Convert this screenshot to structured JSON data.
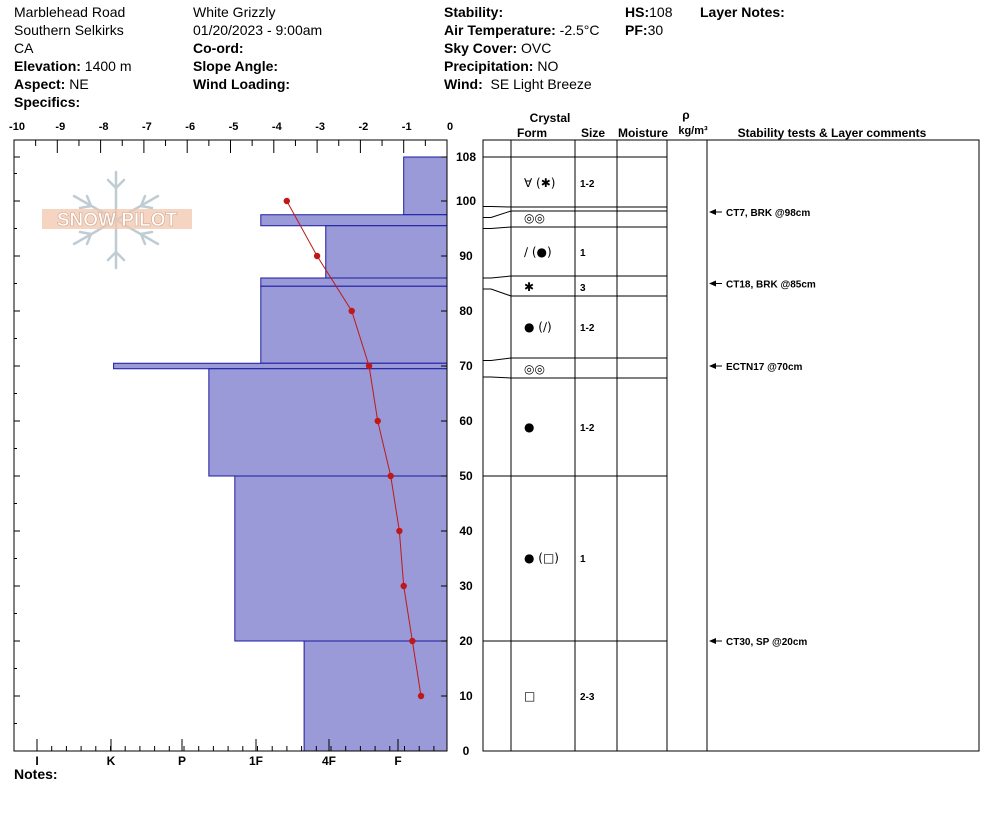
{
  "header": {
    "location": "Marblehead Road",
    "range": "Southern Selkirks",
    "state": "CA",
    "elevation_label": "Elevation:",
    "elevation_value": "1400 m",
    "aspect_label": "Aspect:",
    "aspect_value": "NE",
    "specifics_label": "Specifics:",
    "observer": "White Grizzly",
    "datetime": "01/20/2023 - 9:00am",
    "coord_label": "Co-ord:",
    "slope_label": "Slope Angle:",
    "wind_loading_label": "Wind Loading:",
    "stability_label": "Stability:",
    "air_temp_label": "Air Temperature:",
    "air_temp_value": "-2.5°C",
    "sky_label": "Sky Cover:",
    "sky_value": "OVC",
    "precip_label": "Precipitation:",
    "precip_value": "NO",
    "wind_label": "Wind:",
    "wind_value": "SE  Light Breeze",
    "hs_label": "HS:",
    "hs_value": "108",
    "pf_label": "PF:",
    "pf_value": "30",
    "layer_notes_label": "Layer Notes:",
    "notes_label": "Notes:"
  },
  "logo_text": "SNOW PILOT",
  "colors": {
    "hardness_fill": "#9a9ad8",
    "hardness_stroke": "#1a1aa0",
    "temp_line": "#c01818"
  },
  "table_headers": {
    "crystal": "Crystal",
    "form": "Form",
    "size": "Size",
    "moisture": "Moisture",
    "rho": "ρ",
    "density_unit": "kg/m³",
    "comments": "Stability tests & Layer comments"
  },
  "chart_data": {
    "type": "bar",
    "temp_axis": {
      "ticks": [
        "-10",
        "-9",
        "-8",
        "-7",
        "-6",
        "-5",
        "-4",
        "-3",
        "-2",
        "-1",
        "0"
      ],
      "range": [
        -10,
        0
      ]
    },
    "hardness_axis": {
      "ticks": [
        "I",
        "K",
        "P",
        "1F",
        "4F",
        "F"
      ]
    },
    "height_axis": {
      "ticks": [
        "0",
        "10",
        "20",
        "30",
        "40",
        "50",
        "60",
        "70",
        "80",
        "90",
        "100",
        "108"
      ],
      "range": [
        0,
        108
      ]
    },
    "hardness_layers": [
      {
        "top": 108,
        "bottom": 97.5,
        "hardness": 1.0
      },
      {
        "top": 97.5,
        "bottom": 95.5,
        "hardness": 4.3
      },
      {
        "top": 95.5,
        "bottom": 86,
        "hardness": 2.8
      },
      {
        "top": 86,
        "bottom": 84.5,
        "hardness": 4.3
      },
      {
        "top": 84.5,
        "bottom": 70.5,
        "hardness": 4.3
      },
      {
        "top": 70.5,
        "bottom": 69.5,
        "hardness": 7.7
      },
      {
        "top": 69.5,
        "bottom": 50,
        "hardness": 5.5
      },
      {
        "top": 50,
        "bottom": 20,
        "hardness": 4.9
      },
      {
        "top": 20,
        "bottom": 0,
        "hardness": 3.3
      }
    ],
    "temperature_profile": [
      {
        "height": 100,
        "temp": -3.7
      },
      {
        "height": 90,
        "temp": -3.0
      },
      {
        "height": 80,
        "temp": -2.2
      },
      {
        "height": 70,
        "temp": -1.8
      },
      {
        "height": 60,
        "temp": -1.6
      },
      {
        "height": 50,
        "temp": -1.3
      },
      {
        "height": 40,
        "temp": -1.1
      },
      {
        "height": 30,
        "temp": -1.0
      },
      {
        "height": 20,
        "temp": -0.8
      },
      {
        "height": 10,
        "temp": -0.6
      }
    ],
    "layer_boundaries": [
      108,
      99,
      97,
      95,
      86,
      84,
      71,
      68,
      50,
      20,
      0
    ],
    "layers": [
      {
        "center": 103.5,
        "form": "∀ (✱)",
        "size": "1-2"
      },
      {
        "center": 96,
        "form": "◎◎",
        "size": ""
      },
      {
        "center": 90.5,
        "form": "∕ (●)",
        "size": "1"
      },
      {
        "center": 85,
        "form": "✱",
        "size": "3"
      },
      {
        "center": 77.5,
        "form": "● (∕)",
        "size": "1-2"
      },
      {
        "center": 69.5,
        "form": "◎◎",
        "size": ""
      },
      {
        "center": 59,
        "form": "●",
        "size": "1-2"
      },
      {
        "center": 35,
        "form": "● (□)",
        "size": "1"
      },
      {
        "center": 10,
        "form": "□",
        "size": "2-3"
      }
    ],
    "stability_tests": [
      {
        "height": 98,
        "text": "CT7, BRK @98cm"
      },
      {
        "height": 85,
        "text": "CT18, BRK @85cm"
      },
      {
        "height": 70,
        "text": "ECTN17 @70cm"
      },
      {
        "height": 20,
        "text": "CT30, SP @20cm"
      }
    ]
  }
}
